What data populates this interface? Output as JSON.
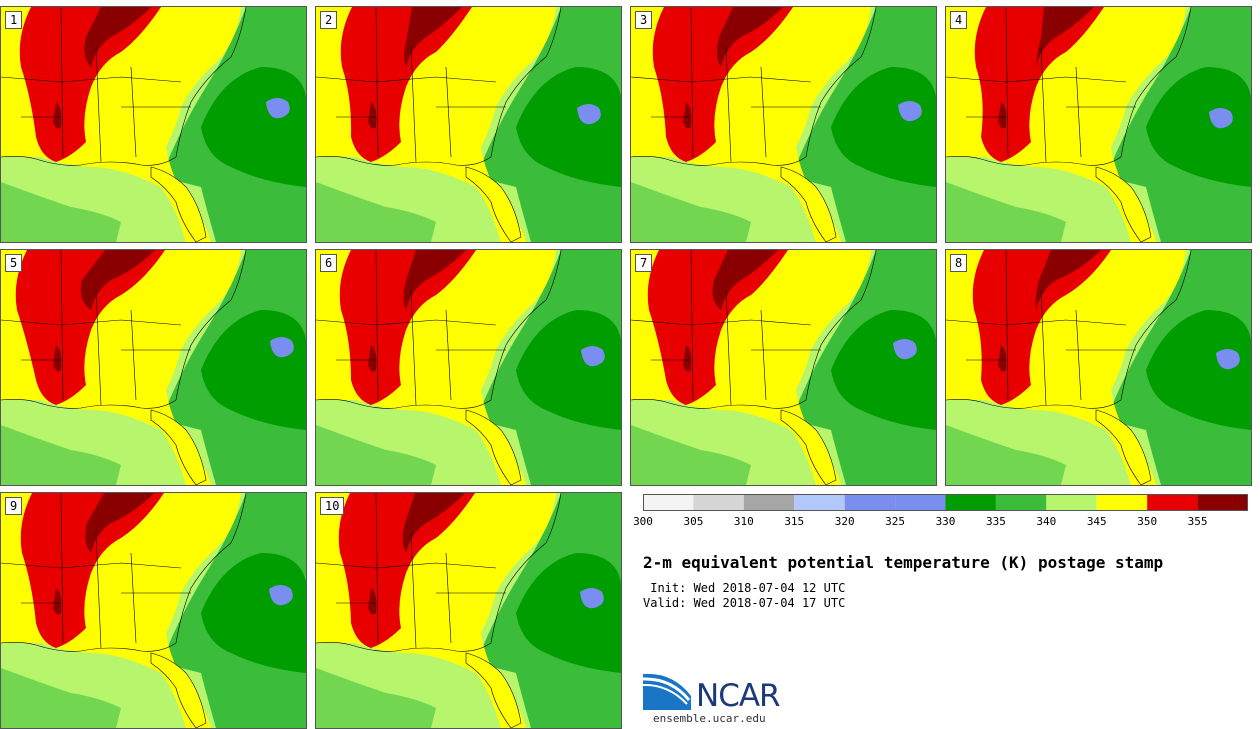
{
  "panels": [
    "1",
    "2",
    "3",
    "4",
    "5",
    "6",
    "7",
    "8",
    "9",
    "10"
  ],
  "colorbar": {
    "colors": [
      "#f4f4f4",
      "#d6d6d6",
      "#a6a6a6",
      "#b3c8fa",
      "#7a8ef0",
      "#7a8ef0",
      "#009d00",
      "#3bbc3b",
      "#b7f56d",
      "#ffff00",
      "#e80000",
      "#8a0000"
    ],
    "ticks": [
      "300",
      "305",
      "310",
      "315",
      "320",
      "325",
      "330",
      "335",
      "340",
      "345",
      "350",
      "355"
    ]
  },
  "title": "2-m equivalent potential temperature (K) postage stamp",
  "init": " Init: Wed 2018-07-04 12 UTC",
  "valid": "Valid: Wed 2018-07-04 17 UTC",
  "logo": {
    "wordmark": "NCAR",
    "site": "ensemble.ucar.edu",
    "icon": "ncar-logo-icon"
  },
  "map_colors": {
    "k340_345": "#b7f56d",
    "k335_340": "#3bbc3b",
    "k330_335": "#009d00",
    "k345_350": "#ffff00",
    "k350_355": "#e80000",
    "k355_plus": "#8a0000",
    "k320_330": "#7a8ef0"
  }
}
